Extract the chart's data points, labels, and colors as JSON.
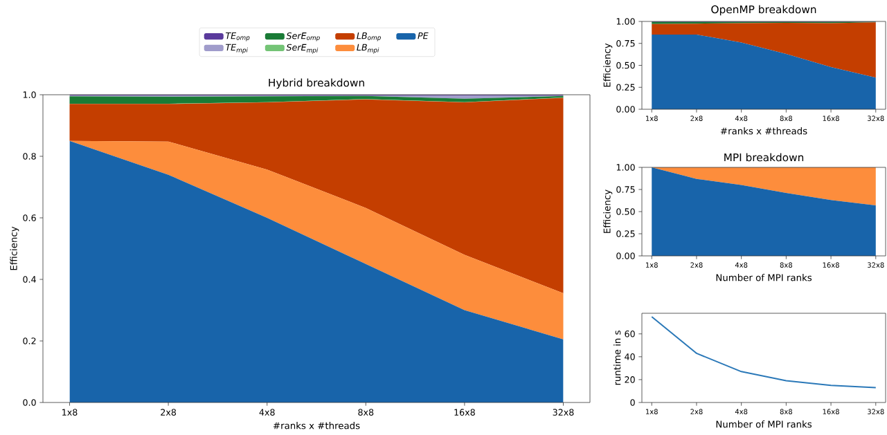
{
  "chart_data": [
    {
      "type": "area",
      "stacked": true,
      "title": "Hybrid breakdown",
      "xlabel": "#ranks x #threads",
      "ylabel": "Efficiency",
      "legend": "top",
      "categories": [
        "1x8",
        "2x8",
        "4x8",
        "8x8",
        "16x8",
        "32x8"
      ],
      "ylim": [
        0,
        1
      ],
      "yticks": [
        {
          "value": 0,
          "label": "0.0"
        },
        {
          "value": 0.2,
          "label": "0.2"
        },
        {
          "value": 0.4,
          "label": "0.4"
        },
        {
          "value": 0.6,
          "label": "0.6"
        },
        {
          "value": 0.8,
          "label": "0.8"
        },
        {
          "value": 1,
          "label": "1.0"
        }
      ],
      "series": [
        {
          "name": "PE",
          "color": "#1864aa",
          "values": [
            0.85,
            0.74,
            0.6,
            0.45,
            0.3,
            0.205
          ]
        },
        {
          "name": "LB$_{mpi}$",
          "color": "#fd8d3c",
          "values": [
            0.0,
            0.108,
            0.157,
            0.182,
            0.18,
            0.15
          ]
        },
        {
          "name": "LB$_{omp}$",
          "color": "#c43e00",
          "values": [
            0.12,
            0.122,
            0.218,
            0.353,
            0.495,
            0.635
          ]
        },
        {
          "name": "SerE$_{mpi}$",
          "color": "#74c476",
          "values": [
            0.001,
            0.001,
            0.001,
            0.001,
            0.001,
            0.001
          ]
        },
        {
          "name": "SerE$_{omp}$",
          "color": "#1a7b36",
          "values": [
            0.024,
            0.023,
            0.019,
            0.01,
            0.011,
            0.005
          ]
        },
        {
          "name": "TE$_{mpi}$",
          "color": "#a09ccb",
          "values": [
            0.002,
            0.003,
            0.002,
            0.002,
            0.01,
            0.002
          ]
        },
        {
          "name": "TE$_{omp}$",
          "color": "#5a3a9c",
          "values": [
            0.003,
            0.003,
            0.003,
            0.002,
            0.003,
            0.002
          ]
        }
      ]
    },
    {
      "type": "area",
      "stacked": true,
      "title": "OpenMP breakdown",
      "xlabel": "#ranks x #threads",
      "ylabel": "Efficiency",
      "categories": [
        "1x8",
        "2x8",
        "4x8",
        "8x8",
        "16x8",
        "32x8"
      ],
      "ylim": [
        0,
        1
      ],
      "yticks": [
        {
          "value": 0,
          "label": "0.00"
        },
        {
          "value": 0.25,
          "label": "0.25"
        },
        {
          "value": 0.5,
          "label": "0.50"
        },
        {
          "value": 0.75,
          "label": "0.75"
        },
        {
          "value": 1,
          "label": "1.00"
        }
      ],
      "series": [
        {
          "color": "#1864aa",
          "values": [
            0.85,
            0.85,
            0.76,
            0.63,
            0.48,
            0.36
          ]
        },
        {
          "color": "#c43e00",
          "values": [
            0.12,
            0.125,
            0.22,
            0.355,
            0.5,
            0.63
          ]
        },
        {
          "color": "#1a7b36",
          "values": [
            0.025,
            0.02,
            0.015,
            0.01,
            0.015,
            0.007
          ]
        },
        {
          "color": "#5a3a9c",
          "values": [
            0.005,
            0.005,
            0.005,
            0.005,
            0.005,
            0.003
          ]
        }
      ]
    },
    {
      "type": "area",
      "stacked": true,
      "title": "MPI breakdown",
      "xlabel": "Number of MPI ranks",
      "ylabel": "Efficiency",
      "categories": [
        "1x8",
        "2x8",
        "4x8",
        "8x8",
        "16x8",
        "32x8"
      ],
      "ylim": [
        0,
        1
      ],
      "yticks": [
        {
          "value": 0,
          "label": "0.00"
        },
        {
          "value": 0.25,
          "label": "0.25"
        },
        {
          "value": 0.5,
          "label": "0.50"
        },
        {
          "value": 0.75,
          "label": "0.75"
        },
        {
          "value": 1,
          "label": "1.00"
        }
      ],
      "series": [
        {
          "color": "#1864aa",
          "values": [
            1.0,
            0.87,
            0.8,
            0.71,
            0.63,
            0.57
          ]
        },
        {
          "color": "#fd8d3c",
          "values": [
            0.0,
            0.13,
            0.2,
            0.29,
            0.37,
            0.43
          ]
        }
      ]
    },
    {
      "type": "line",
      "xlabel": "Number of MPI ranks",
      "ylabel": "runtime in s",
      "categories": [
        "1x8",
        "2x8",
        "4x8",
        "8x8",
        "16x8",
        "32x8"
      ],
      "ylim": [
        0,
        78
      ],
      "yticks": [
        0,
        20,
        40,
        60
      ],
      "series": [
        {
          "color": "#2a78b8",
          "values": [
            75,
            43,
            27,
            19,
            15,
            13
          ]
        }
      ]
    }
  ]
}
